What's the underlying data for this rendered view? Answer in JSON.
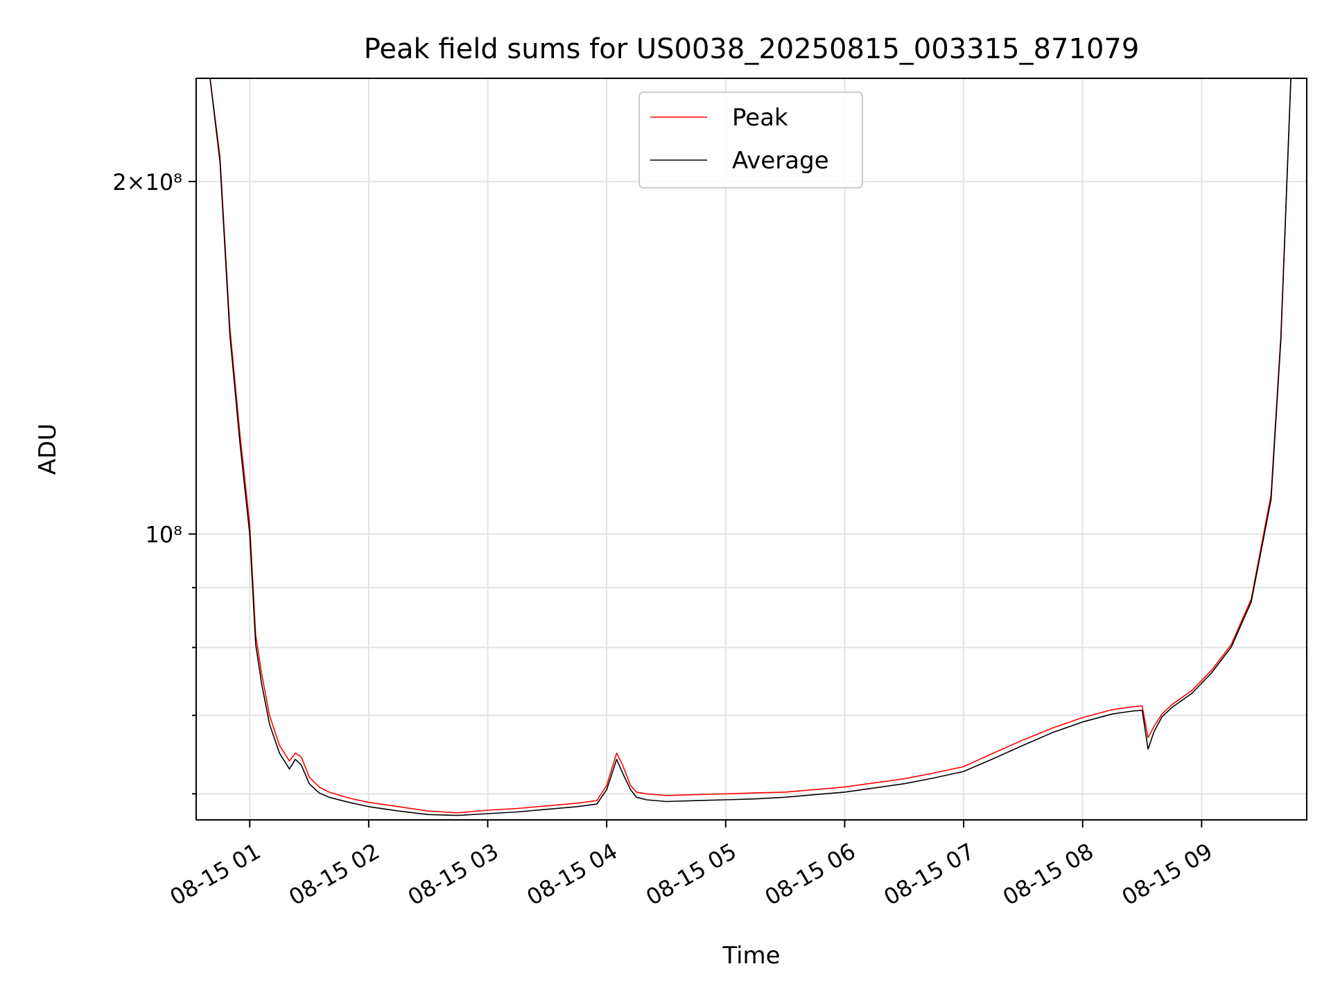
{
  "chart_data": {
    "type": "line",
    "title": "Peak field sums for US0038_20250815_003315_871079",
    "xlabel": "Time",
    "ylabel": "ADU",
    "y_scale": "log",
    "ylim": [
      57000000,
      245000000
    ],
    "xlim": [
      "2025-08-15 00:33",
      "2025-08-15 09:53"
    ],
    "grid": true,
    "legend": "top-center",
    "x_ticks": [
      {
        "t": "2025-08-15 01:00",
        "label": "08-15 01"
      },
      {
        "t": "2025-08-15 02:00",
        "label": "08-15 02"
      },
      {
        "t": "2025-08-15 03:00",
        "label": "08-15 03"
      },
      {
        "t": "2025-08-15 04:00",
        "label": "08-15 04"
      },
      {
        "t": "2025-08-15 05:00",
        "label": "08-15 05"
      },
      {
        "t": "2025-08-15 06:00",
        "label": "08-15 06"
      },
      {
        "t": "2025-08-15 07:00",
        "label": "08-15 07"
      },
      {
        "t": "2025-08-15 08:00",
        "label": "08-15 08"
      },
      {
        "t": "2025-08-15 09:00",
        "label": "08-15 09"
      }
    ],
    "y_ticks": [
      {
        "v": 200000000,
        "label": "2×10⁸",
        "major": true
      },
      {
        "v": 100000000,
        "label": "10⁸",
        "major": true
      },
      {
        "v": 90000000,
        "label": "",
        "major": false
      },
      {
        "v": 80000000,
        "label": "",
        "major": false
      },
      {
        "v": 70000000,
        "label": "",
        "major": false
      },
      {
        "v": 60000000,
        "label": "",
        "major": false
      }
    ],
    "series": [
      {
        "name": "Peak",
        "color": "#ff0000",
        "x": [
          "2025-08-15 00:33",
          "2025-08-15 00:40",
          "2025-08-15 00:45",
          "2025-08-15 00:50",
          "2025-08-15 00:55",
          "2025-08-15 01:00",
          "2025-08-15 01:03",
          "2025-08-15 01:06",
          "2025-08-15 01:10",
          "2025-08-15 01:15",
          "2025-08-15 01:20",
          "2025-08-15 01:23",
          "2025-08-15 01:26",
          "2025-08-15 01:30",
          "2025-08-15 01:35",
          "2025-08-15 01:40",
          "2025-08-15 01:50",
          "2025-08-15 02:00",
          "2025-08-15 02:15",
          "2025-08-15 02:30",
          "2025-08-15 02:45",
          "2025-08-15 03:00",
          "2025-08-15 03:15",
          "2025-08-15 03:30",
          "2025-08-15 03:45",
          "2025-08-15 03:55",
          "2025-08-15 04:00",
          "2025-08-15 04:05",
          "2025-08-15 04:08",
          "2025-08-15 04:12",
          "2025-08-15 04:15",
          "2025-08-15 04:20",
          "2025-08-15 04:30",
          "2025-08-15 04:45",
          "2025-08-15 05:00",
          "2025-08-15 05:15",
          "2025-08-15 05:30",
          "2025-08-15 05:45",
          "2025-08-15 06:00",
          "2025-08-15 06:15",
          "2025-08-15 06:30",
          "2025-08-15 06:45",
          "2025-08-15 07:00",
          "2025-08-15 07:15",
          "2025-08-15 07:30",
          "2025-08-15 07:45",
          "2025-08-15 08:00",
          "2025-08-15 08:15",
          "2025-08-15 08:25",
          "2025-08-15 08:30",
          "2025-08-15 08:33",
          "2025-08-15 08:36",
          "2025-08-15 08:40",
          "2025-08-15 08:45",
          "2025-08-15 08:55",
          "2025-08-15 09:05",
          "2025-08-15 09:15",
          "2025-08-15 09:25",
          "2025-08-15 09:35",
          "2025-08-15 09:40",
          "2025-08-15 09:45",
          "2025-08-15 09:53"
        ],
        "values": [
          245000000,
          245000000,
          210000000,
          150000000,
          122000000,
          102000000,
          82000000,
          76000000,
          70000000,
          66000000,
          64000000,
          65000000,
          64500000,
          62000000,
          60800000,
          60200000,
          59500000,
          59000000,
          58500000,
          58000000,
          57800000,
          58100000,
          58300000,
          58600000,
          58900000,
          59200000,
          61000000,
          65000000,
          63500000,
          61000000,
          60200000,
          60000000,
          59800000,
          59900000,
          60000000,
          60100000,
          60200000,
          60500000,
          60800000,
          61300000,
          61800000,
          62500000,
          63300000,
          65000000,
          66700000,
          68300000,
          69700000,
          70800000,
          71200000,
          71300000,
          67000000,
          68500000,
          70200000,
          71500000,
          73500000,
          76500000,
          80500000,
          88000000,
          108000000,
          148000000,
          245000000,
          245000000
        ]
      },
      {
        "name": "Average",
        "color": "#000000",
        "x": [
          "2025-08-15 00:33",
          "2025-08-15 00:40",
          "2025-08-15 00:45",
          "2025-08-15 00:50",
          "2025-08-15 00:55",
          "2025-08-15 01:00",
          "2025-08-15 01:03",
          "2025-08-15 01:06",
          "2025-08-15 01:10",
          "2025-08-15 01:15",
          "2025-08-15 01:20",
          "2025-08-15 01:23",
          "2025-08-15 01:26",
          "2025-08-15 01:30",
          "2025-08-15 01:35",
          "2025-08-15 01:40",
          "2025-08-15 01:50",
          "2025-08-15 02:00",
          "2025-08-15 02:15",
          "2025-08-15 02:30",
          "2025-08-15 02:45",
          "2025-08-15 03:00",
          "2025-08-15 03:15",
          "2025-08-15 03:30",
          "2025-08-15 03:45",
          "2025-08-15 03:55",
          "2025-08-15 04:00",
          "2025-08-15 04:05",
          "2025-08-15 04:08",
          "2025-08-15 04:12",
          "2025-08-15 04:15",
          "2025-08-15 04:20",
          "2025-08-15 04:30",
          "2025-08-15 04:45",
          "2025-08-15 05:00",
          "2025-08-15 05:15",
          "2025-08-15 05:30",
          "2025-08-15 05:45",
          "2025-08-15 06:00",
          "2025-08-15 06:15",
          "2025-08-15 06:30",
          "2025-08-15 06:45",
          "2025-08-15 07:00",
          "2025-08-15 07:15",
          "2025-08-15 07:30",
          "2025-08-15 07:45",
          "2025-08-15 08:00",
          "2025-08-15 08:15",
          "2025-08-15 08:25",
          "2025-08-15 08:30",
          "2025-08-15 08:33",
          "2025-08-15 08:36",
          "2025-08-15 08:40",
          "2025-08-15 08:45",
          "2025-08-15 08:55",
          "2025-08-15 09:05",
          "2025-08-15 09:15",
          "2025-08-15 09:25",
          "2025-08-15 09:35",
          "2025-08-15 09:40",
          "2025-08-15 09:45",
          "2025-08-15 09:53"
        ],
        "values": [
          245000000,
          245000000,
          208000000,
          148000000,
          120000000,
          100000000,
          80500000,
          74500000,
          68800000,
          65000000,
          63000000,
          64200000,
          63500000,
          61200000,
          60100000,
          59600000,
          59000000,
          58500000,
          58000000,
          57600000,
          57500000,
          57700000,
          57900000,
          58200000,
          58500000,
          58800000,
          60500000,
          64200000,
          62500000,
          60500000,
          59600000,
          59300000,
          59100000,
          59200000,
          59300000,
          59400000,
          59600000,
          59900000,
          60200000,
          60700000,
          61200000,
          61900000,
          62700000,
          64300000,
          66000000,
          67700000,
          69100000,
          70200000,
          70600000,
          70700000,
          65500000,
          67800000,
          69800000,
          71100000,
          73100000,
          76100000,
          80100000,
          87500000,
          107000000,
          147000000,
          245000000,
          245000000
        ]
      }
    ]
  }
}
